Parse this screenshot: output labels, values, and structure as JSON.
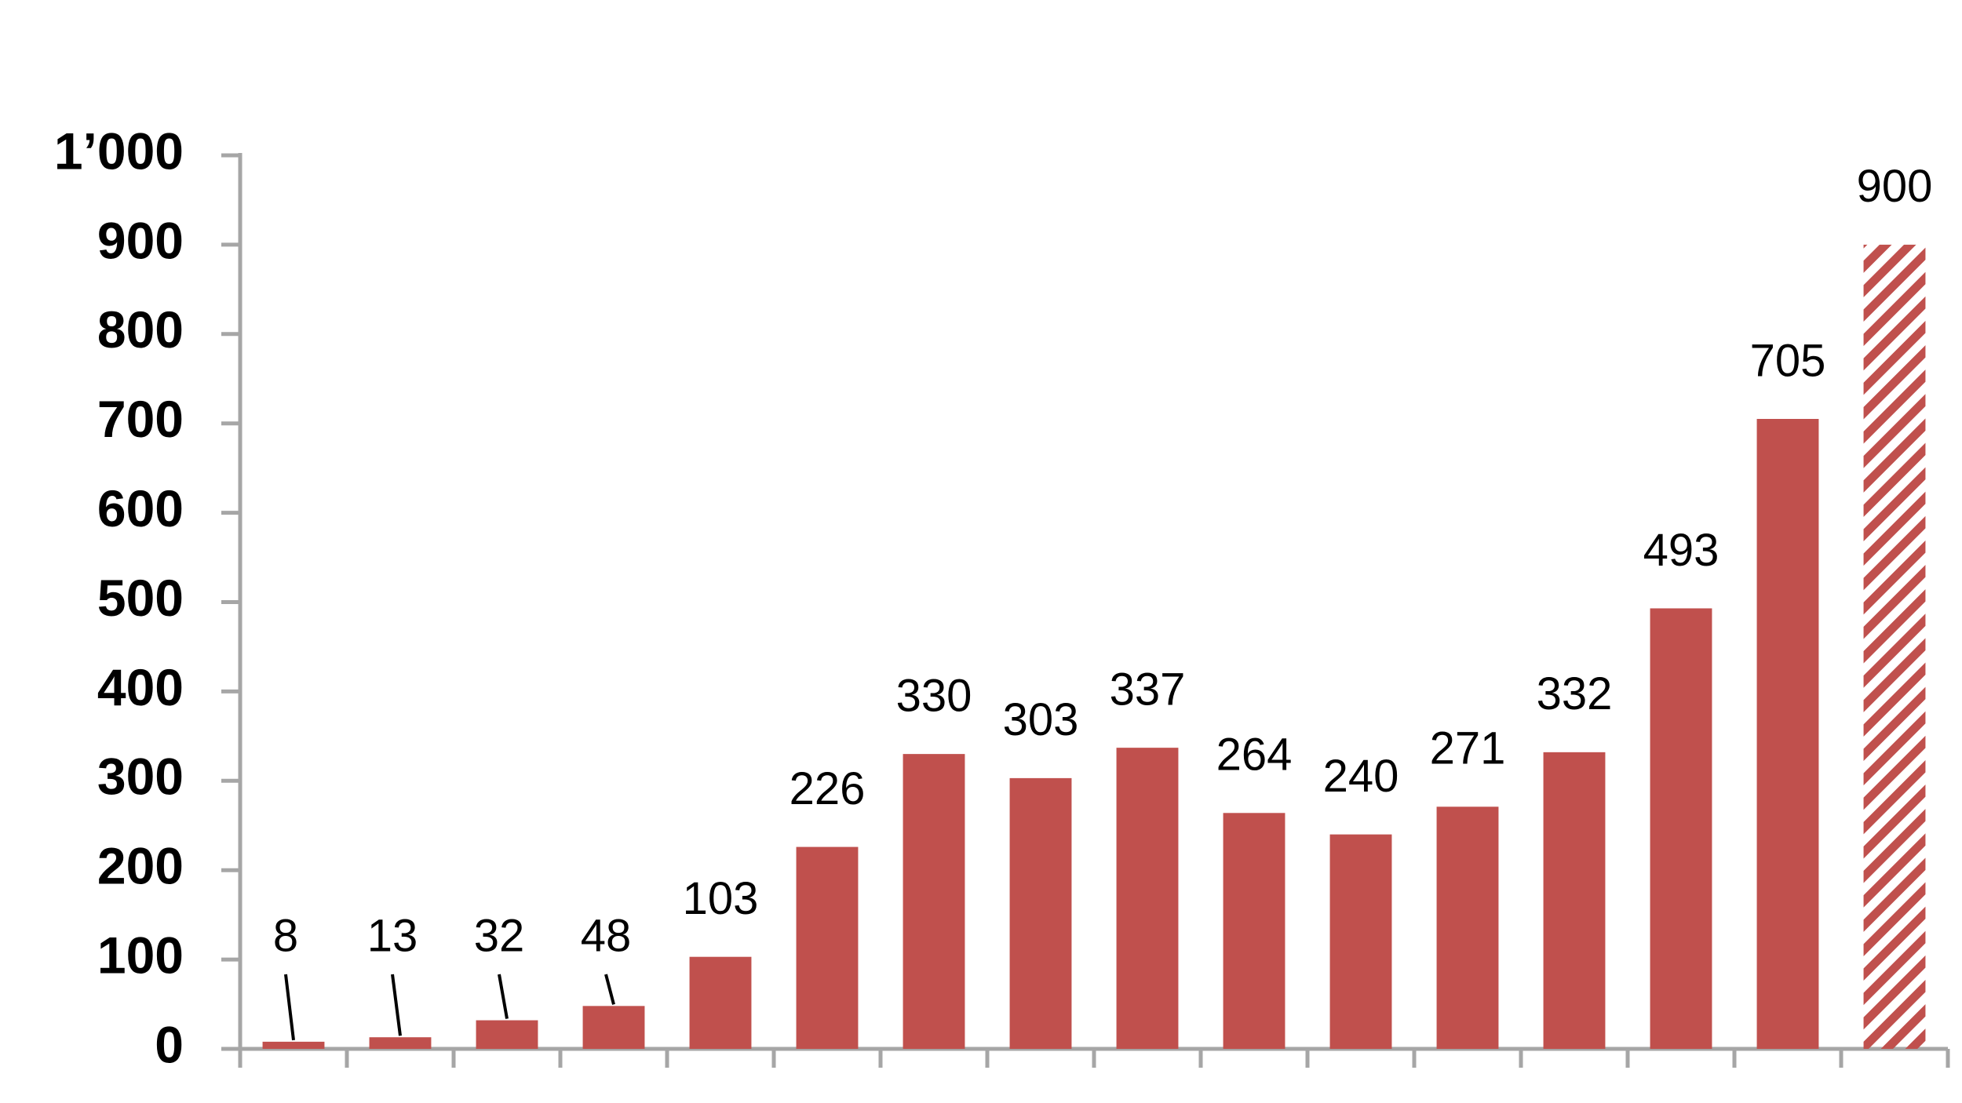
{
  "chart_data": {
    "type": "bar",
    "categories": [
      null,
      null,
      null,
      null,
      null,
      null,
      null,
      null,
      null,
      null,
      null,
      null,
      null,
      null,
      null,
      null
    ],
    "values": [
      8,
      13,
      32,
      48,
      103,
      226,
      330,
      303,
      337,
      264,
      240,
      271,
      332,
      493,
      705,
      900
    ],
    "bar_styles": [
      "solid",
      "solid",
      "solid",
      "solid",
      "solid",
      "solid",
      "solid",
      "solid",
      "solid",
      "solid",
      "solid",
      "solid",
      "solid",
      "solid",
      "solid",
      "hatched"
    ],
    "color": "#c0504d",
    "ylim": [
      0,
      1000
    ],
    "yticks": [
      0,
      100,
      200,
      300,
      400,
      500,
      600,
      700,
      800,
      900,
      {
        "value": 1000,
        "label": "1’000"
      }
    ],
    "grid": false
  }
}
